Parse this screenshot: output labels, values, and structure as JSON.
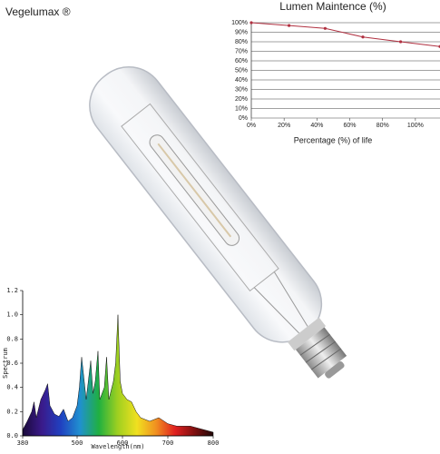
{
  "brand": "Vegelumax ®",
  "chart_data": [
    {
      "type": "line",
      "title": "Lumen Maintence (%)",
      "x_label": "Percentage (%) of life",
      "x": [
        0,
        23,
        45,
        68,
        91,
        115
      ],
      "values": [
        100,
        97,
        94,
        85,
        80,
        75
      ],
      "color": "#b03040",
      "xlim": [
        0,
        115
      ],
      "xticks": [
        {
          "value": 0,
          "label": "0%"
        },
        {
          "value": 20,
          "label": "20%"
        },
        {
          "value": 40,
          "label": "40%"
        },
        {
          "value": 60,
          "label": "60%"
        },
        {
          "value": 80,
          "label": "80%"
        },
        {
          "value": 100,
          "label": "100%"
        }
      ],
      "ylim": [
        0,
        100
      ],
      "yticks": [
        {
          "value": 0,
          "label": "0%"
        },
        {
          "value": 10,
          "label": "10%"
        },
        {
          "value": 20,
          "label": "20%"
        },
        {
          "value": 30,
          "label": "30%"
        },
        {
          "value": 40,
          "label": "40%"
        },
        {
          "value": 50,
          "label": "50%"
        },
        {
          "value": 60,
          "label": "60%"
        },
        {
          "value": 70,
          "label": "70%"
        },
        {
          "value": 80,
          "label": "80%"
        },
        {
          "value": 90,
          "label": "90%"
        },
        {
          "value": 100,
          "label": "100%"
        }
      ],
      "grid": true
    },
    {
      "type": "area",
      "x_label": "Wavelength(nm)",
      "y_label": "Spectrum",
      "x": [
        380,
        390,
        400,
        405,
        410,
        420,
        430,
        435,
        440,
        450,
        460,
        470,
        480,
        490,
        500,
        505,
        510,
        520,
        530,
        535,
        540,
        546,
        550,
        560,
        565,
        570,
        580,
        585,
        590,
        595,
        600,
        610,
        620,
        630,
        640,
        660,
        680,
        700,
        720,
        750,
        780,
        800
      ],
      "values": [
        0.05,
        0.12,
        0.2,
        0.28,
        0.15,
        0.3,
        0.38,
        0.43,
        0.25,
        0.18,
        0.16,
        0.22,
        0.12,
        0.15,
        0.25,
        0.4,
        0.65,
        0.3,
        0.62,
        0.35,
        0.45,
        0.7,
        0.3,
        0.4,
        0.65,
        0.3,
        0.45,
        0.6,
        1.0,
        0.45,
        0.35,
        0.3,
        0.28,
        0.2,
        0.15,
        0.12,
        0.15,
        0.1,
        0.08,
        0.08,
        0.05,
        0.03
      ],
      "gradient": [
        "#1a0a3a",
        "#3a1a8a",
        "#2040c0",
        "#2090d0",
        "#20b040",
        "#a0d020",
        "#f0e020",
        "#f09020",
        "#e02020",
        "#801010",
        "#200808"
      ],
      "xlim": [
        380,
        800
      ],
      "xticks": [
        380,
        500,
        600,
        700,
        800
      ],
      "ylim": [
        0,
        1.2
      ],
      "yticks": [
        {
          "value": 0,
          "label": "0.0"
        },
        {
          "value": 0.2,
          "label": "0.2"
        },
        {
          "value": 0.4,
          "label": "0.4"
        },
        {
          "value": 0.6,
          "label": "0.6"
        },
        {
          "value": 0.8,
          "label": "0.8"
        },
        {
          "value": 1.0,
          "label": "1.0"
        },
        {
          "value": 1.2,
          "label": "1.2"
        }
      ]
    }
  ]
}
